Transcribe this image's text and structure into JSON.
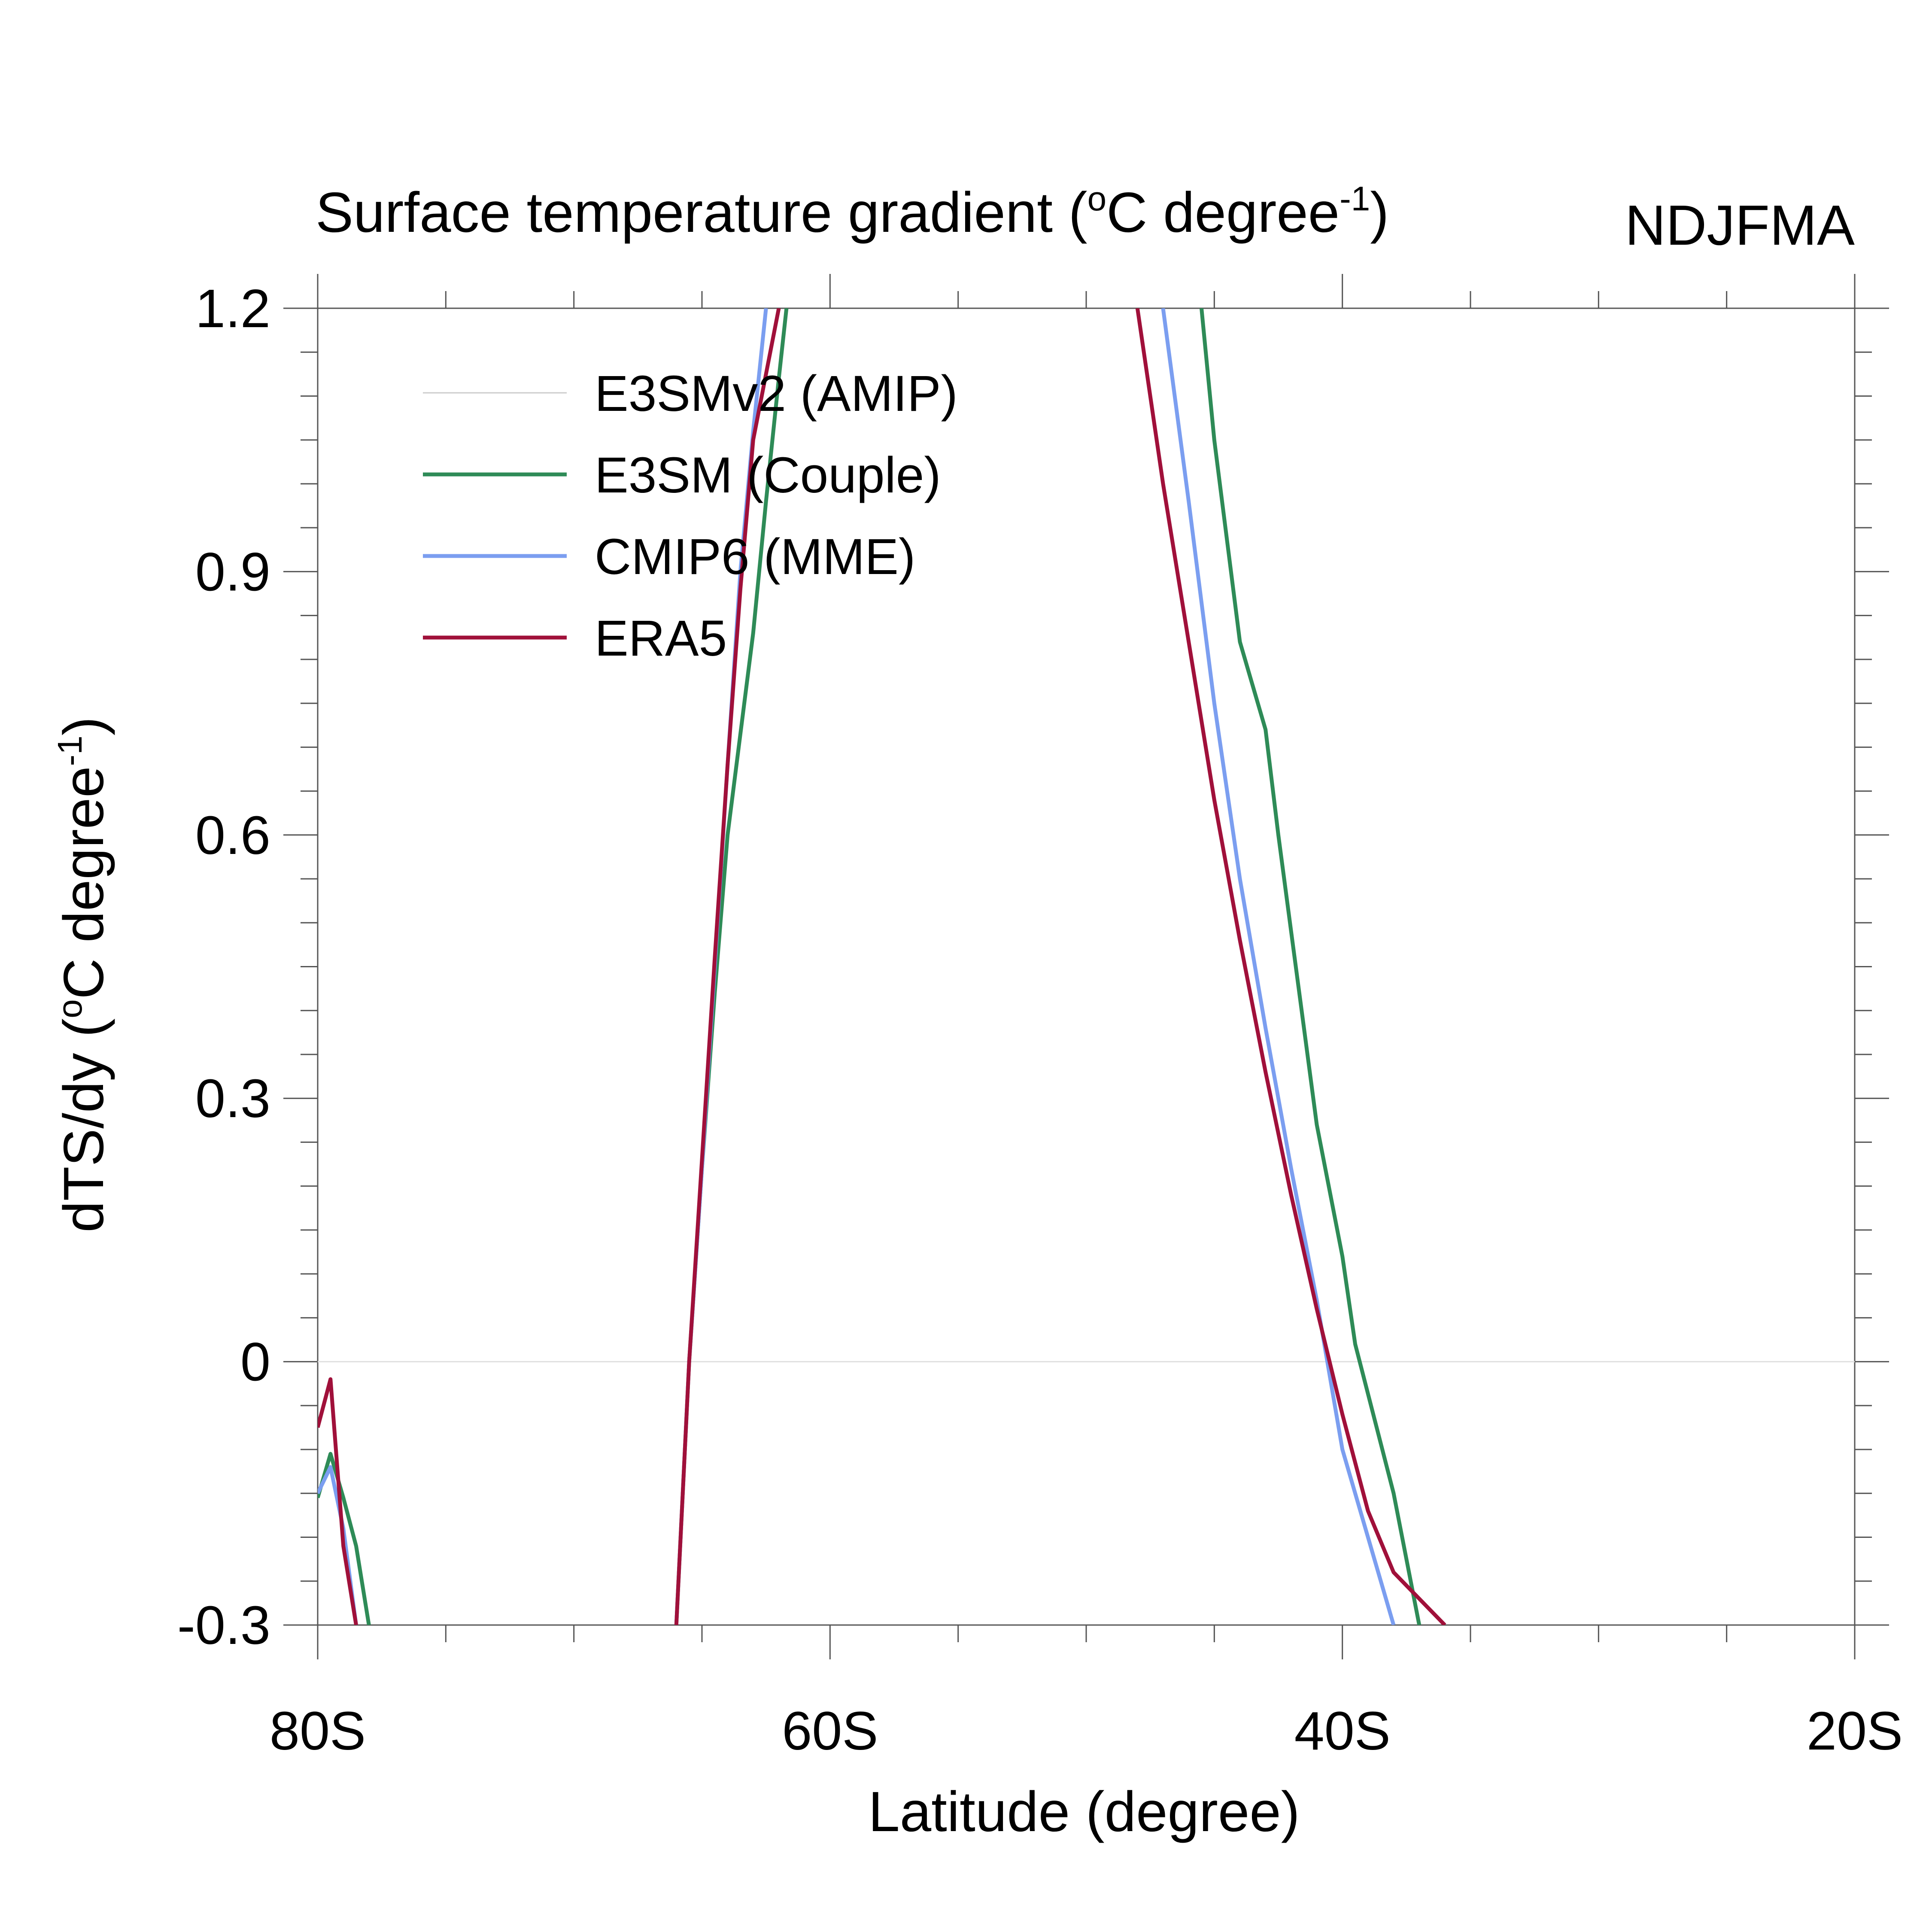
{
  "chart_data": {
    "type": "line",
    "title": "Surface temperature gradient (",
    "title_unit": "C degree",
    "title_sup_deg": "o",
    "title_sup_exp": "-1",
    "title_close": ")",
    "season": "NDJFMA",
    "xlabel": "Latitude (degree)",
    "ylabel": "dTS/dy (",
    "ylabel_unit": "C degree",
    "ylabel_sup_deg": "o",
    "ylabel_sup_exp": "-1",
    "ylabel_close": ")",
    "xlim": [
      -80,
      -20
    ],
    "ylim": [
      -0.3,
      1.2
    ],
    "xticks": [
      {
        "value": -80,
        "label": "80S"
      },
      {
        "value": -60,
        "label": "60S"
      },
      {
        "value": -40,
        "label": "40S"
      },
      {
        "value": -20,
        "label": "20S"
      }
    ],
    "yticks": [
      {
        "value": 1.2,
        "label": "1.2"
      },
      {
        "value": 0.9,
        "label": "0.9"
      },
      {
        "value": 0.6,
        "label": "0.6"
      },
      {
        "value": 0.3,
        "label": "0.3"
      },
      {
        "value": 0.0,
        "label": "0"
      },
      {
        "value": -0.3,
        "label": "-0.3"
      }
    ],
    "legend_position": "top-left",
    "series": [
      {
        "name": "E3SMv2 (AMIP)",
        "color": "#cccccc",
        "segments": []
      },
      {
        "name": "E3SM (Couple)",
        "color": "#2e8b57",
        "segments": [
          [
            [
              -80.0,
              -0.155
            ],
            [
              -79.5,
              -0.105
            ],
            [
              -79.0,
              -0.155
            ],
            [
              -78.5,
              -0.21
            ],
            [
              -78.0,
              -0.3
            ]
          ],
          [
            [
              -66.0,
              -0.3
            ],
            [
              -65.5,
              0.0
            ],
            [
              -65.0,
              0.22
            ],
            [
              -64.5,
              0.42
            ],
            [
              -64.0,
              0.6
            ],
            [
              -63.0,
              0.83
            ],
            [
              -62.5,
              0.98
            ],
            [
              -62.0,
              1.12
            ],
            [
              -61.7,
              1.2
            ]
          ],
          [
            [
              -45.5,
              1.2
            ],
            [
              -45.0,
              1.05
            ],
            [
              -44.0,
              0.82
            ],
            [
              -43.0,
              0.72
            ],
            [
              -42.5,
              0.6
            ],
            [
              -42.0,
              0.49
            ],
            [
              -41.5,
              0.38
            ],
            [
              -41.0,
              0.27
            ],
            [
              -40.0,
              0.12
            ],
            [
              -39.5,
              0.02
            ],
            [
              -38.0,
              -0.15
            ],
            [
              -37.0,
              -0.3
            ]
          ]
        ]
      },
      {
        "name": "CMIP6 (MME)",
        "color": "#7b9ef0",
        "segments": [
          [
            [
              -80.0,
              -0.15
            ],
            [
              -79.5,
              -0.12
            ],
            [
              -79.0,
              -0.19
            ],
            [
              -78.5,
              -0.3
            ]
          ],
          [
            [
              -66.0,
              -0.3
            ],
            [
              -65.5,
              0.0
            ],
            [
              -65.0,
              0.22
            ],
            [
              -64.5,
              0.45
            ],
            [
              -64.0,
              0.68
            ],
            [
              -63.5,
              0.9
            ],
            [
              -63.0,
              1.06
            ],
            [
              -62.5,
              1.2
            ]
          ],
          [
            [
              -47.0,
              1.2
            ],
            [
              -46.0,
              0.98
            ],
            [
              -45.0,
              0.75
            ],
            [
              -44.0,
              0.55
            ],
            [
              -43.0,
              0.38
            ],
            [
              -42.0,
              0.22
            ],
            [
              -41.0,
              0.07
            ],
            [
              -40.0,
              -0.1
            ],
            [
              -39.0,
              -0.2
            ],
            [
              -38.0,
              -0.3
            ]
          ]
        ]
      },
      {
        "name": "ERA5",
        "color": "#a0103a",
        "segments": [
          [
            [
              -80.0,
              -0.075
            ],
            [
              -79.5,
              -0.02
            ],
            [
              -79.0,
              -0.21
            ],
            [
              -78.5,
              -0.3
            ]
          ],
          [
            [
              -66.0,
              -0.3
            ],
            [
              -65.5,
              0.0
            ],
            [
              -65.0,
              0.23
            ],
            [
              -64.5,
              0.46
            ],
            [
              -64.0,
              0.68
            ],
            [
              -63.5,
              0.88
            ],
            [
              -63.0,
              1.05
            ],
            [
              -62.0,
              1.2
            ]
          ],
          [
            [
              -48.0,
              1.2
            ],
            [
              -47.0,
              1.0
            ],
            [
              -46.0,
              0.82
            ],
            [
              -45.0,
              0.64
            ],
            [
              -44.0,
              0.48
            ],
            [
              -43.0,
              0.33
            ],
            [
              -42.0,
              0.19
            ],
            [
              -41.0,
              0.06
            ],
            [
              -40.0,
              -0.06
            ],
            [
              -39.0,
              -0.17
            ],
            [
              -38.0,
              -0.24
            ],
            [
              -37.0,
              -0.27
            ],
            [
              -36.0,
              -0.3
            ]
          ]
        ]
      }
    ]
  }
}
